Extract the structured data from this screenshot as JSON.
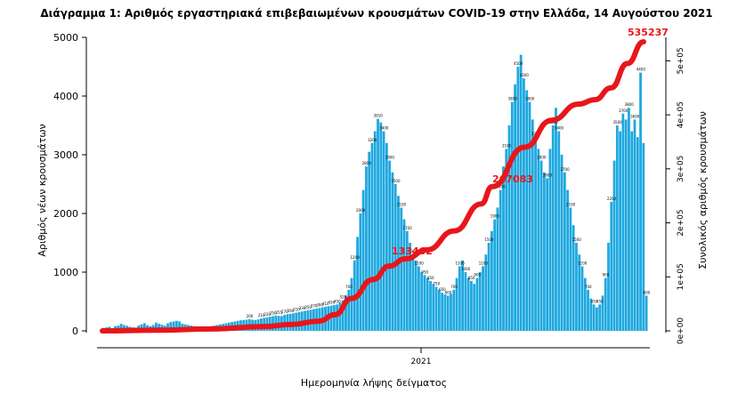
{
  "chart_data": {
    "type": "bar",
    "title": "Διάγραμμα 1: Αριθμός εργαστηριακά επιβεβαιωμένων κρουσμάτων COVID-19 στην Ελλάδα, 14 Αυγούστου 2021",
    "xlabel": "Ημερομηνία λήψης δείγματος",
    "ylabel": "Αριθμός νέων κρουσμάτων",
    "ylabel_right": "Συνολικός αριθμός κρουσμάτων",
    "x_tick_labels": [
      "2021"
    ],
    "ylim": [
      0,
      5000
    ],
    "y_ticks": [
      0,
      1000,
      2000,
      3000,
      4000,
      5000
    ],
    "y2lim": [
      0,
      535237
    ],
    "y2_ticks": [
      "0e+00",
      "1e+05",
      "2e+05",
      "3e+05",
      "4e+05",
      "5e+05"
    ],
    "grid": false,
    "series": [
      {
        "kind": "bar",
        "color": "#1ea8df",
        "values": [
          50,
          60,
          70,
          40,
          80,
          90,
          120,
          100,
          85,
          70,
          60,
          55,
          90,
          110,
          130,
          95,
          80,
          100,
          140,
          120,
          105,
          90,
          130,
          150,
          160,
          170,
          160,
          120,
          110,
          100,
          90,
          80,
          70,
          60,
          65,
          70,
          75,
          80,
          90,
          100,
          110,
          120,
          130,
          140,
          150,
          160,
          170,
          180,
          185,
          190,
          200,
          190,
          185,
          195,
          210,
          220,
          230,
          240,
          250,
          260,
          255,
          250,
          270,
          285,
          290,
          300,
          310,
          320,
          330,
          340,
          350,
          360,
          370,
          380,
          390,
          400,
          410,
          420,
          430,
          440,
          450,
          480,
          520,
          600,
          700,
          900,
          1200,
          1600,
          2000,
          2400,
          2800,
          3050,
          3200,
          3400,
          3610,
          3550,
          3400,
          3200,
          2900,
          2700,
          2500,
          2300,
          2100,
          1900,
          1700,
          1500,
          1300,
          1200,
          1100,
          1000,
          950,
          900,
          850,
          800,
          750,
          700,
          650,
          620,
          600,
          630,
          700,
          900,
          1100,
          1200,
          1000,
          900,
          850,
          800,
          900,
          1000,
          1100,
          1300,
          1500,
          1700,
          1900,
          2100,
          2400,
          2800,
          3100,
          3500,
          3900,
          4200,
          4500,
          4703,
          4300,
          4100,
          3900,
          3600,
          3300,
          3100,
          2900,
          2700,
          2600,
          3100,
          3500,
          3800,
          3400,
          3000,
          2700,
          2400,
          2100,
          1800,
          1500,
          1300,
          1100,
          900,
          700,
          550,
          450,
          400,
          450,
          600,
          900,
          1500,
          2200,
          2900,
          3500,
          3400,
          3700,
          3600,
          3800,
          3400,
          3600,
          3300,
          4400,
          3200,
          600
        ]
      },
      {
        "kind": "line",
        "name": "cumulative",
        "color": "#e8161b",
        "axis": "right",
        "points": [
          [
            0,
            0
          ],
          [
            0.1,
            1200
          ],
          [
            0.2,
            3500
          ],
          [
            0.3,
            8000
          ],
          [
            0.35,
            12000
          ],
          [
            0.4,
            18000
          ],
          [
            0.43,
            30000
          ],
          [
            0.46,
            60000
          ],
          [
            0.5,
            95000
          ],
          [
            0.53,
            120000
          ],
          [
            0.56,
            133462
          ],
          [
            0.6,
            150000
          ],
          [
            0.65,
            185000
          ],
          [
            0.7,
            235000
          ],
          [
            0.72,
            267083
          ],
          [
            0.78,
            340000
          ],
          [
            0.83,
            390000
          ],
          [
            0.88,
            420000
          ],
          [
            0.91,
            428000
          ],
          [
            0.94,
            450000
          ],
          [
            0.97,
            495000
          ],
          [
            1.0,
            535237
          ]
        ]
      }
    ],
    "annotations": [
      "535237",
      "133462",
      "267083"
    ]
  }
}
